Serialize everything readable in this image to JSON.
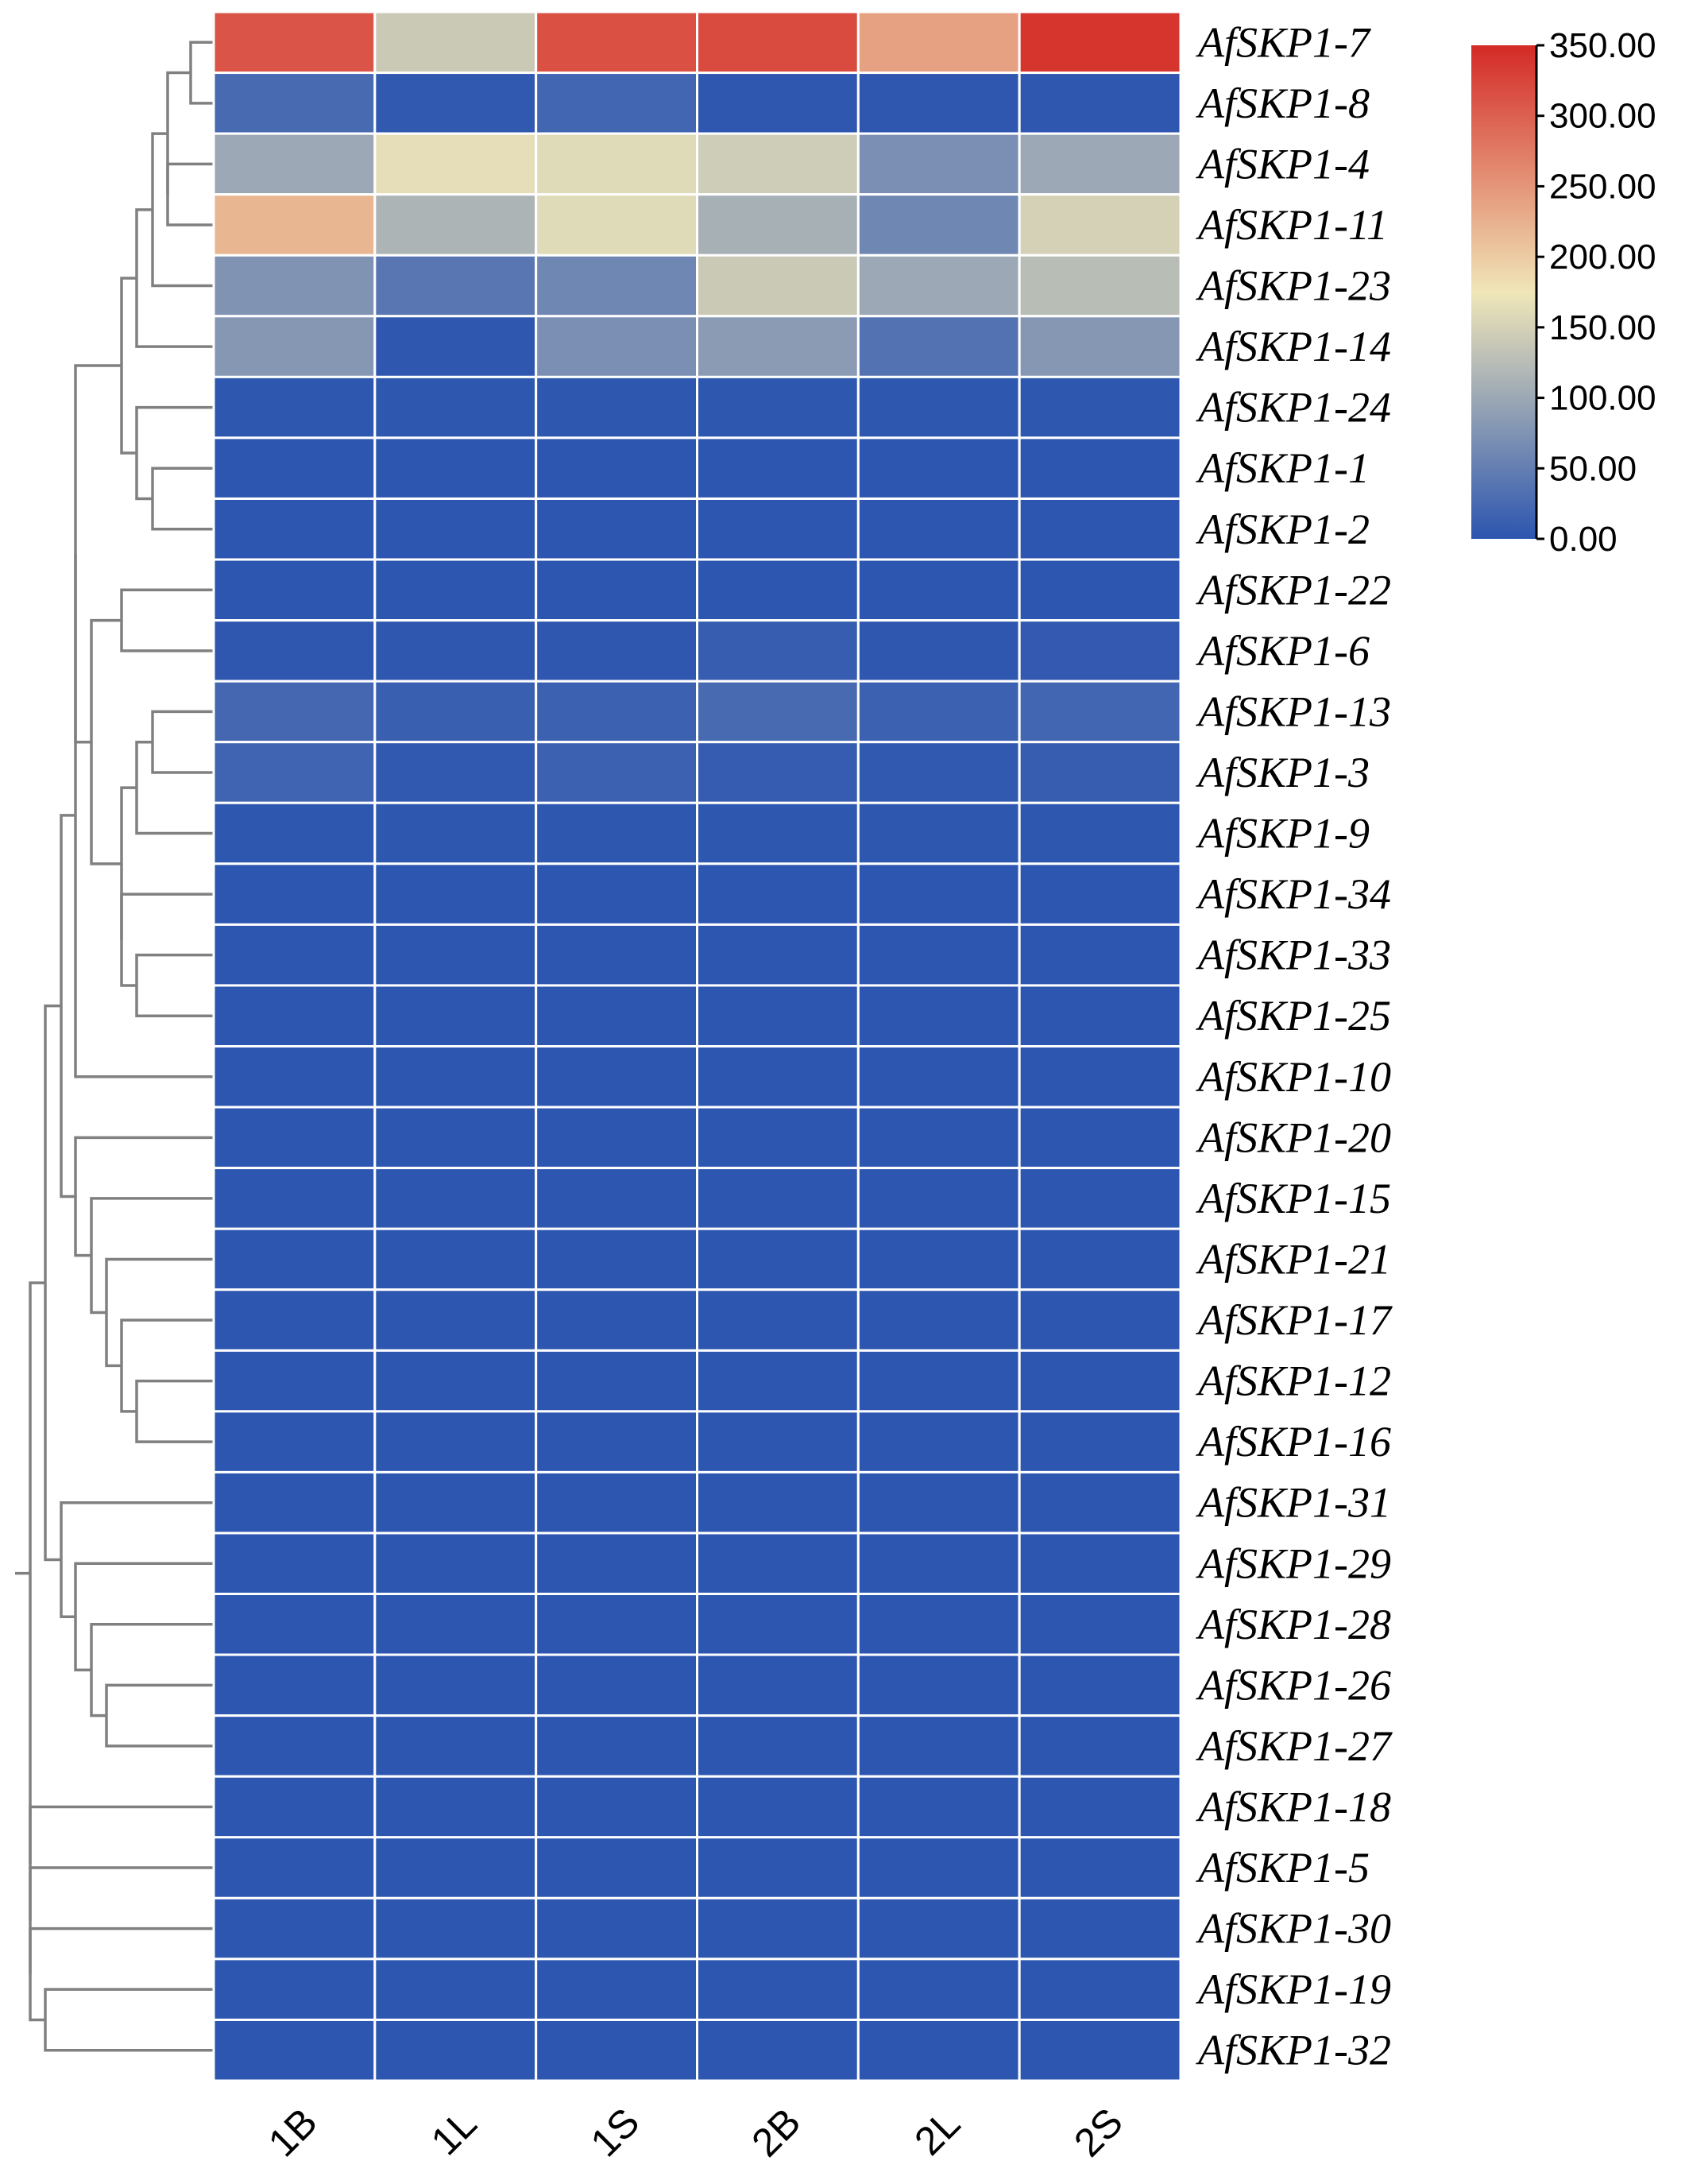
{
  "chart_data": {
    "type": "heatmap",
    "columns": [
      "1B",
      "1L",
      "1S",
      "2B",
      "2L",
      "2S"
    ],
    "rows": [
      {
        "label": "AfSKP1-7",
        "values": [
          310,
          140,
          315,
          320,
          240,
          340
        ]
      },
      {
        "label": "AfSKP1-8",
        "values": [
          25,
          5,
          20,
          3,
          3,
          3
        ]
      },
      {
        "label": "AfSKP1-4",
        "values": [
          100,
          165,
          160,
          145,
          70,
          100
        ]
      },
      {
        "label": "AfSKP1-11",
        "values": [
          220,
          115,
          160,
          110,
          60,
          150
        ]
      },
      {
        "label": "AfSKP1-23",
        "values": [
          75,
          40,
          60,
          140,
          100,
          125
        ]
      },
      {
        "label": "AfSKP1-14",
        "values": [
          80,
          3,
          70,
          85,
          35,
          80
        ]
      },
      {
        "label": "AfSKP1-24",
        "values": [
          2,
          2,
          2,
          2,
          2,
          2
        ]
      },
      {
        "label": "AfSKP1-1",
        "values": [
          1,
          1,
          1,
          1,
          1,
          1
        ]
      },
      {
        "label": "AfSKP1-2",
        "values": [
          1,
          1,
          1,
          1,
          1,
          1
        ]
      },
      {
        "label": "AfSKP1-22",
        "values": [
          1,
          1,
          1,
          1,
          1,
          1
        ]
      },
      {
        "label": "AfSKP1-6",
        "values": [
          3,
          3,
          3,
          10,
          3,
          6
        ]
      },
      {
        "label": "AfSKP1-13",
        "values": [
          22,
          12,
          15,
          25,
          15,
          20
        ]
      },
      {
        "label": "AfSKP1-3",
        "values": [
          18,
          5,
          15,
          8,
          5,
          10
        ]
      },
      {
        "label": "AfSKP1-9",
        "values": [
          2,
          2,
          2,
          2,
          2,
          2
        ]
      },
      {
        "label": "AfSKP1-34",
        "values": [
          1,
          1,
          1,
          1,
          1,
          1
        ]
      },
      {
        "label": "AfSKP1-33",
        "values": [
          1,
          1,
          1,
          1,
          1,
          1
        ]
      },
      {
        "label": "AfSKP1-25",
        "values": [
          1,
          1,
          1,
          1,
          1,
          1
        ]
      },
      {
        "label": "AfSKP1-10",
        "values": [
          1,
          1,
          1,
          1,
          1,
          1
        ]
      },
      {
        "label": "AfSKP1-20",
        "values": [
          1,
          1,
          1,
          1,
          1,
          1
        ]
      },
      {
        "label": "AfSKP1-15",
        "values": [
          1,
          1,
          1,
          1,
          1,
          1
        ]
      },
      {
        "label": "AfSKP1-21",
        "values": [
          1,
          1,
          1,
          1,
          1,
          1
        ]
      },
      {
        "label": "AfSKP1-17",
        "values": [
          1,
          1,
          1,
          1,
          1,
          1
        ]
      },
      {
        "label": "AfSKP1-12",
        "values": [
          1,
          1,
          1,
          1,
          1,
          1
        ]
      },
      {
        "label": "AfSKP1-16",
        "values": [
          1,
          1,
          1,
          1,
          1,
          1
        ]
      },
      {
        "label": "AfSKP1-31",
        "values": [
          1,
          1,
          1,
          1,
          1,
          1
        ]
      },
      {
        "label": "AfSKP1-29",
        "values": [
          1,
          1,
          1,
          1,
          1,
          1
        ]
      },
      {
        "label": "AfSKP1-28",
        "values": [
          1,
          1,
          1,
          1,
          1,
          1
        ]
      },
      {
        "label": "AfSKP1-26",
        "values": [
          1,
          1,
          1,
          1,
          1,
          1
        ]
      },
      {
        "label": "AfSKP1-27",
        "values": [
          1,
          1,
          1,
          1,
          1,
          1
        ]
      },
      {
        "label": "AfSKP1-18",
        "values": [
          1,
          1,
          1,
          1,
          1,
          1
        ]
      },
      {
        "label": "AfSKP1-5",
        "values": [
          1,
          1,
          1,
          1,
          1,
          1
        ]
      },
      {
        "label": "AfSKP1-30",
        "values": [
          1,
          1,
          1,
          1,
          1,
          1
        ]
      },
      {
        "label": "AfSKP1-19",
        "values": [
          1,
          1,
          1,
          1,
          1,
          1
        ]
      },
      {
        "label": "AfSKP1-32",
        "values": [
          1,
          1,
          1,
          1,
          1,
          1
        ]
      }
    ],
    "colorbar": {
      "min": 0,
      "max": 350,
      "tick_labels": [
        "350.00",
        "300.00",
        "250.00",
        "200.00",
        "150.00",
        "100.00",
        "50.00",
        "0.00"
      ],
      "colors": [
        "#2c55b0",
        "#f0e6b8",
        "#d42a26"
      ],
      "placement": "top-right"
    },
    "dendrogram": "rows-left",
    "grid_line_color": "#ffffff",
    "branch_color": "#808080"
  }
}
